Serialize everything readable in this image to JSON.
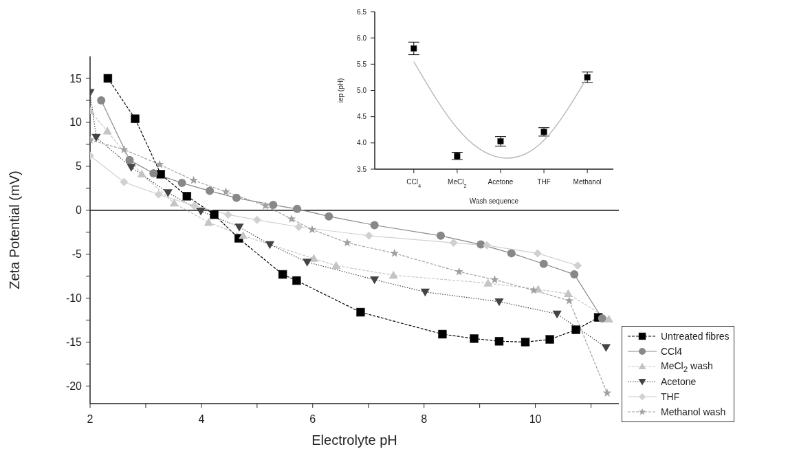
{
  "chart_data": [
    {
      "type": "line",
      "xlabel": "Electrolyte pH",
      "ylabel": "Zeta Potential (mV)",
      "xlim": [
        2,
        11.5
      ],
      "xticks": [
        2,
        {
          "value": 3,
          "label": null
        },
        4,
        {
          "value": 5,
          "label": null
        },
        6,
        {
          "value": 7,
          "label": null
        },
        8,
        {
          "value": 9,
          "label": null
        },
        10,
        {
          "value": 11,
          "label": null
        }
      ],
      "ylim": [
        -22,
        17.5
      ],
      "yticks": [
        -20,
        {
          "value": -17.5,
          "label": null
        },
        -15,
        {
          "value": -12.5,
          "label": null
        },
        -10,
        {
          "value": -7.5,
          "label": null
        },
        -5,
        {
          "value": -2.5,
          "label": null
        },
        0,
        {
          "value": 2.5,
          "label": null
        },
        5,
        {
          "value": 7.5,
          "label": null
        },
        10,
        {
          "value": 12.5,
          "label": null
        },
        15
      ],
      "legend": "right",
      "ref_lines": [
        {
          "axis": "y",
          "value": 0,
          "color": "#000000"
        }
      ],
      "series": [
        {
          "name": "Untreated fibres",
          "color": "#000000",
          "marker": "square",
          "line_style": "dashed",
          "x": [
            2.32,
            2.81,
            3.27,
            3.74,
            4.23,
            4.67,
            5.46,
            5.71,
            6.86,
            8.33,
            8.9,
            9.35,
            9.82,
            10.26,
            10.73,
            11.13
          ],
          "values": [
            15.0,
            10.4,
            4.1,
            1.6,
            -0.5,
            -3.2,
            -7.3,
            -8.0,
            -11.6,
            -14.1,
            -14.6,
            -14.9,
            -15.0,
            -14.7,
            -13.6,
            -12.2
          ]
        },
        {
          "name": "CCl4",
          "color": "#888888",
          "marker": "circle",
          "line_style": "solid",
          "x": [
            2.2,
            2.71,
            3.14,
            3.65,
            4.15,
            4.63,
            5.29,
            5.72,
            6.29,
            7.11,
            8.3,
            9.02,
            9.57,
            10.15,
            10.7,
            11.2
          ],
          "values": [
            12.5,
            5.7,
            4.2,
            3.1,
            2.2,
            1.4,
            0.6,
            0.15,
            -0.7,
            -1.7,
            -2.9,
            -3.9,
            -4.9,
            -6.1,
            -7.3,
            -12.3
          ]
        },
        {
          "name": "MeCl$_{2}$ wash",
          "color": "#c4c4c4",
          "marker": "triangle",
          "line_style": "dashed",
          "x": [
            2.0,
            2.31,
            2.93,
            3.51,
            4.13,
            4.75,
            6.02,
            6.42,
            7.45,
            9.15,
            10.05,
            10.59,
            11.32
          ],
          "values": [
            11.3,
            9.0,
            4.1,
            0.8,
            -1.4,
            -2.9,
            -5.5,
            -6.3,
            -7.4,
            -8.3,
            -9.0,
            -9.5,
            -12.4
          ]
        },
        {
          "name": "Acetone",
          "color": "#444444",
          "marker": "triangle_down",
          "line_style": "dotted",
          "x": [
            2.0,
            2.11,
            2.74,
            3.4,
            3.99,
            4.68,
            5.23,
            5.9,
            7.11,
            8.02,
            9.35,
            10.39,
            11.27
          ],
          "values": [
            13.4,
            8.3,
            4.9,
            2.0,
            -0.1,
            -1.9,
            -3.9,
            -5.9,
            -7.9,
            -9.3,
            -10.4,
            -11.8,
            -15.6
          ]
        },
        {
          "name": "THF",
          "color": "#d0d0d0",
          "marker": "diamond",
          "line_style": "solid",
          "x": [
            2.0,
            2.61,
            3.23,
            3.87,
            4.48,
            5.0,
            5.75,
            7.01,
            8.53,
            9.13,
            10.04,
            10.76
          ],
          "values": [
            6.2,
            3.2,
            1.8,
            0.5,
            -0.5,
            -1.1,
            -1.9,
            -2.9,
            -3.7,
            -4.0,
            -4.9,
            -6.3
          ]
        },
        {
          "name": "Methanol wash",
          "color": "#a0a0a0",
          "marker": "star",
          "line_style": "dashed",
          "x": [
            2.0,
            2.61,
            3.25,
            3.86,
            4.44,
            5.15,
            5.62,
            5.99,
            6.62,
            7.47,
            8.63,
            9.27,
            9.97,
            10.61,
            11.29
          ],
          "values": [
            8.0,
            6.9,
            5.2,
            3.4,
            2.1,
            0.5,
            -1.0,
            -2.2,
            -3.7,
            -4.9,
            -7.0,
            -7.9,
            -9.1,
            -10.3,
            -20.8
          ]
        }
      ]
    },
    {
      "type": "scatter",
      "xlabel": "Wash sequence",
      "ylabel": "iep (pH)",
      "categories": [
        "CCl$_{4}$",
        "MeCl$_{2}$",
        "Acetone",
        "THF",
        "Methanol"
      ],
      "ylim": [
        3.5,
        6.5
      ],
      "yticks": [
        {
          "value": 3.5,
          "label": "3.5"
        },
        {
          "value": 4,
          "label": "4.0"
        },
        {
          "value": 4.5,
          "label": "4.5"
        },
        {
          "value": 5,
          "label": "5.0"
        },
        {
          "value": 5.5,
          "label": "5.5"
        },
        {
          "value": 6,
          "label": "6.0"
        },
        {
          "value": 6.5,
          "label": "6.5"
        }
      ],
      "legend": false,
      "series": [
        {
          "color": "#000000",
          "marker": "square",
          "values": [
            5.8,
            3.75,
            4.03,
            4.21,
            5.25
          ],
          "errors": [
            0.12,
            0.07,
            0.09,
            0.08,
            0.1
          ]
        },
        {
          "type": "line",
          "color": "#bbbbbb",
          "marker": "none",
          "line_style": "solid",
          "values": [
            5.55,
            4.28,
            3.72,
            4.05,
            5.25
          ]
        }
      ]
    }
  ]
}
